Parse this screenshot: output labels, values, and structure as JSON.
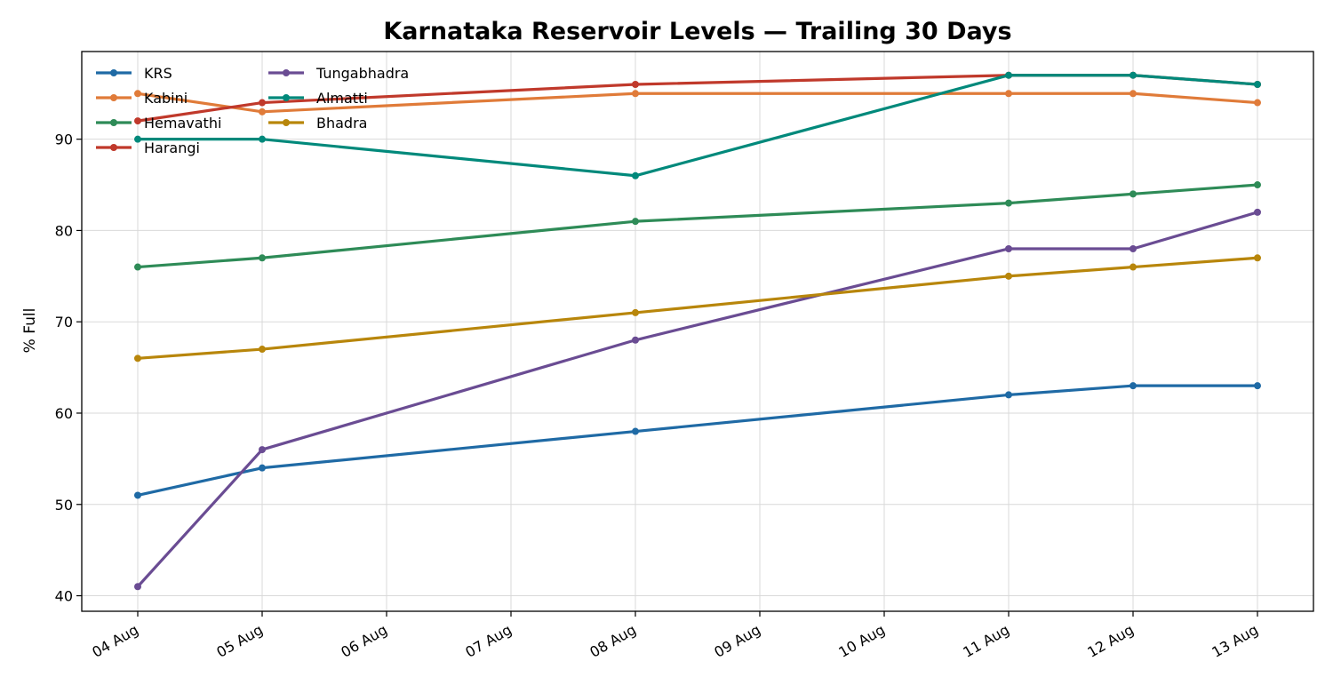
{
  "chart_data": {
    "type": "line",
    "title": "Karnataka Reservoir Levels — Trailing 30 Days",
    "xlabel": "",
    "ylabel": "% Full",
    "x_tick_labels": [
      "04 Aug",
      "05 Aug",
      "06 Aug",
      "07 Aug",
      "08 Aug",
      "09 Aug",
      "10 Aug",
      "11 Aug",
      "12 Aug",
      "13 Aug"
    ],
    "x": [
      "04 Aug",
      "05 Aug",
      "08 Aug",
      "11 Aug",
      "12 Aug",
      "13 Aug"
    ],
    "y_ticks": [
      40,
      50,
      60,
      70,
      80,
      90
    ],
    "ylim": [
      38.3,
      99.6
    ],
    "grid": true,
    "legend": {
      "placement": "top-left",
      "columns": 2
    },
    "series": [
      {
        "name": "KRS",
        "color": "#1f6aa5",
        "values": [
          51,
          54,
          58,
          62,
          63,
          63
        ]
      },
      {
        "name": "Kabini",
        "color": "#e07b39",
        "values": [
          95,
          93,
          95,
          95,
          95,
          94
        ]
      },
      {
        "name": "Hemavathi",
        "color": "#2e8b57",
        "values": [
          76,
          77,
          81,
          83,
          84,
          85
        ]
      },
      {
        "name": "Harangi",
        "color": "#c0392b",
        "values": [
          92,
          94,
          96,
          97,
          97,
          96
        ]
      },
      {
        "name": "Tungabhadra",
        "color": "#6a4c93",
        "values": [
          41,
          56,
          68,
          78,
          78,
          82
        ]
      },
      {
        "name": "Almatti",
        "color": "#00897b",
        "values": [
          90,
          90,
          86,
          97,
          97,
          96
        ]
      },
      {
        "name": "Bhadra",
        "color": "#b8860b",
        "values": [
          66,
          67,
          71,
          75,
          76,
          77
        ]
      }
    ]
  }
}
